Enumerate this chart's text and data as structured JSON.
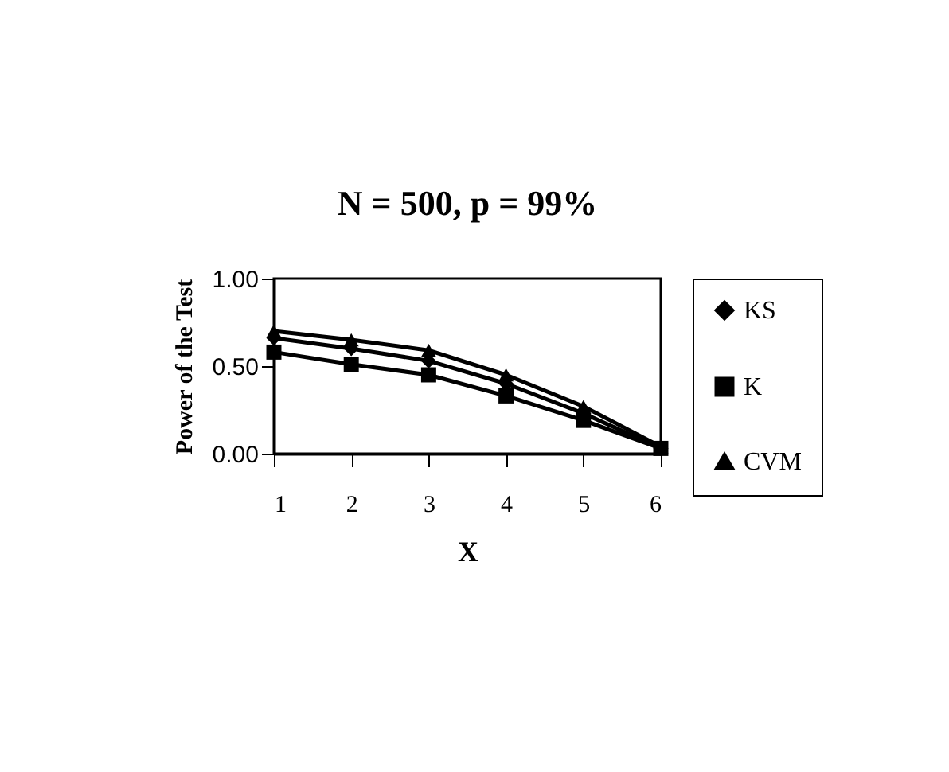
{
  "chart_data": {
    "type": "line",
    "title": "N = 500, p = 99%",
    "xlabel": "X",
    "ylabel": "Power of the Test",
    "x": [
      1,
      2,
      3,
      4,
      5,
      6
    ],
    "xlim": [
      1,
      6
    ],
    "xticks": [
      1,
      2,
      3,
      4,
      5,
      6
    ],
    "ylim": [
      0,
      1
    ],
    "yticks": [
      {
        "value": 0,
        "label": "0.00"
      },
      {
        "value": 0.5,
        "label": "0.50"
      },
      {
        "value": 1,
        "label": "1.00"
      }
    ],
    "grid": false,
    "legend": "right",
    "series": [
      {
        "name": "KS",
        "color": "#000000",
        "marker": "diamond",
        "values": [
          0.66,
          0.6,
          0.53,
          0.4,
          0.23,
          0.03
        ]
      },
      {
        "name": "K",
        "color": "#000000",
        "marker": "square",
        "values": [
          0.58,
          0.51,
          0.45,
          0.33,
          0.19,
          0.03
        ]
      },
      {
        "name": "CVM",
        "color": "#000000",
        "marker": "triangle",
        "values": [
          0.7,
          0.65,
          0.59,
          0.45,
          0.27,
          0.04
        ]
      }
    ]
  }
}
